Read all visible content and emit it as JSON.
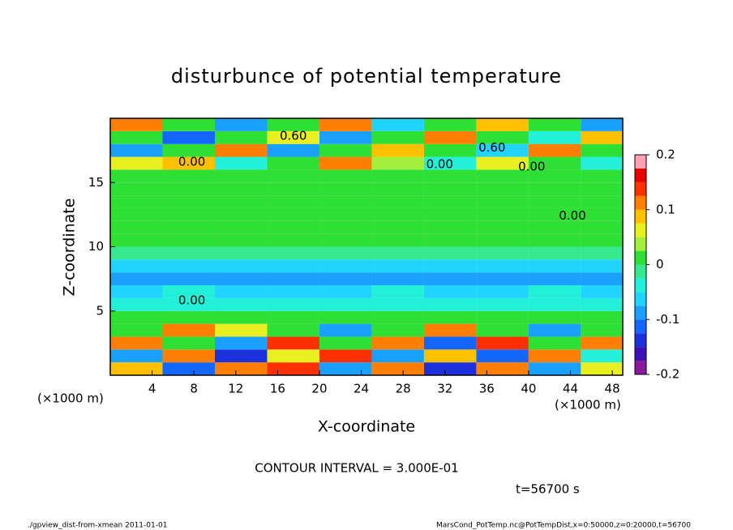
{
  "chart_data": {
    "type": "shaded-field",
    "title": "disturbunce of potential temperature",
    "xlabel": "X-coordinate",
    "ylabel": "Z-coordinate",
    "xunit": "(×1000 m)",
    "yunit": "(×1000 m)",
    "xlim": [
      0,
      49
    ],
    "ylim": [
      0,
      20
    ],
    "xticks": [
      4,
      8,
      12,
      16,
      20,
      24,
      28,
      32,
      36,
      40,
      44,
      48
    ],
    "yticks": [
      5,
      10,
      15
    ],
    "field": {
      "x": [
        0,
        5,
        10,
        15,
        20,
        25,
        30,
        35,
        40,
        45,
        49
      ],
      "z": [
        0,
        1,
        2,
        3,
        4,
        5,
        6,
        7,
        8,
        9,
        10,
        11,
        12,
        13,
        14,
        15,
        16,
        17,
        18,
        19,
        20
      ],
      "values": [
        [
          0.08,
          -0.12,
          0.1,
          0.15,
          -0.1,
          0.12,
          -0.15,
          0.1,
          -0.08,
          0.05
        ],
        [
          -0.1,
          0.12,
          -0.14,
          0.05,
          0.15,
          -0.1,
          0.08,
          -0.12,
          0.1,
          -0.05
        ],
        [
          0.12,
          0.01,
          -0.1,
          0.14,
          0.01,
          0.1,
          -0.12,
          0.14,
          0.01,
          0.1
        ],
        [
          0.01,
          0.1,
          0.05,
          0.01,
          -0.1,
          0.01,
          0.12,
          0.01,
          -0.1,
          0.01
        ],
        [
          0.01,
          0.01,
          0.02,
          0.01,
          0.01,
          0.01,
          0.01,
          0.02,
          0.01,
          0.01
        ],
        [
          -0.03,
          -0.04,
          -0.05,
          -0.04,
          -0.05,
          -0.03,
          -0.04,
          -0.05,
          -0.04,
          -0.03
        ],
        [
          -0.06,
          -0.05,
          -0.06,
          -0.07,
          -0.06,
          -0.05,
          -0.06,
          -0.06,
          -0.05,
          -0.06
        ],
        [
          -0.09,
          -0.08,
          -0.09,
          -0.09,
          -0.08,
          -0.09,
          -0.09,
          -0.08,
          -0.09,
          -0.09
        ],
        [
          -0.07,
          -0.06,
          -0.07,
          -0.07,
          -0.06,
          -0.07,
          -0.06,
          -0.07,
          -0.07,
          -0.06
        ],
        [
          -0.02,
          -0.01,
          -0.02,
          -0.02,
          -0.01,
          -0.02,
          -0.02,
          -0.01,
          -0.02,
          -0.02
        ],
        [
          0.01,
          0.02,
          0.01,
          0.01,
          0.01,
          0.01,
          0.01,
          0.01,
          0.01,
          0.01
        ],
        [
          0.01,
          0.01,
          0.01,
          0.01,
          0.01,
          0.01,
          0.01,
          0.01,
          0.01,
          0.01
        ],
        [
          0.01,
          0.01,
          0.01,
          0.01,
          0.01,
          0.01,
          0.01,
          0.01,
          0.01,
          0.02
        ],
        [
          0.01,
          0.01,
          0.01,
          0.01,
          0.01,
          0.01,
          0.01,
          0.01,
          0.01,
          0.01
        ],
        [
          0.01,
          0.01,
          0.01,
          0.01,
          0.01,
          0.01,
          0.01,
          0.01,
          0.01,
          0.01
        ],
        [
          0.01,
          0.01,
          0.01,
          0.01,
          0.01,
          0.01,
          0.01,
          0.01,
          0.01,
          0.01
        ],
        [
          0.05,
          0.08,
          -0.05,
          0.02,
          0.1,
          0.03,
          -0.04,
          0.06,
          0.02,
          -0.03
        ],
        [
          -0.08,
          0.01,
          0.12,
          -0.1,
          0.01,
          0.08,
          0.01,
          -0.06,
          0.1,
          0.01
        ],
        [
          0.01,
          -0.12,
          0.01,
          0.06,
          -0.08,
          0.01,
          0.1,
          0.01,
          -0.05,
          0.08
        ],
        [
          0.1,
          0.01,
          -0.1,
          0.01,
          0.12,
          -0.06,
          0.01,
          0.08,
          0.01,
          -0.1
        ]
      ]
    },
    "colorbar": {
      "lim": [
        -0.2,
        0.2
      ],
      "ticks": [
        0.2,
        0.1,
        0,
        -0.1,
        -0.2
      ],
      "colors": [
        "#8a1a9a",
        "#3c10b4",
        "#1c30dc",
        "#1466ff",
        "#1aa0ff",
        "#20d4ff",
        "#22f0d8",
        "#36e890",
        "#2ee034",
        "#a2f03c",
        "#e8f020",
        "#ffc000",
        "#ff8000",
        "#ff3000",
        "#e80000",
        "#ffa0b4"
      ]
    },
    "annotations": [
      {
        "text": "0.60",
        "x": 17.5,
        "y": 18.6
      },
      {
        "text": "0.60",
        "x": 36.5,
        "y": 17.7
      },
      {
        "text": "0.00",
        "x": 7.8,
        "y": 16.6
      },
      {
        "text": "0.00",
        "x": 31.5,
        "y": 16.4
      },
      {
        "text": "0.00",
        "x": 40.3,
        "y": 16.2
      },
      {
        "text": "0.00",
        "x": 44.2,
        "y": 12.4
      },
      {
        "text": "0.00",
        "x": 7.8,
        "y": 5.8
      }
    ],
    "contour_interval": "CONTOUR INTERVAL = 3.000E-01",
    "time": "t=56700 s",
    "footer_left": "./gpview_dist-from-xmean   2011-01-01",
    "footer_right": "MarsCond_PotTemp.nc@PotTempDist,x=0:50000,z=0:20000,t=56700"
  }
}
